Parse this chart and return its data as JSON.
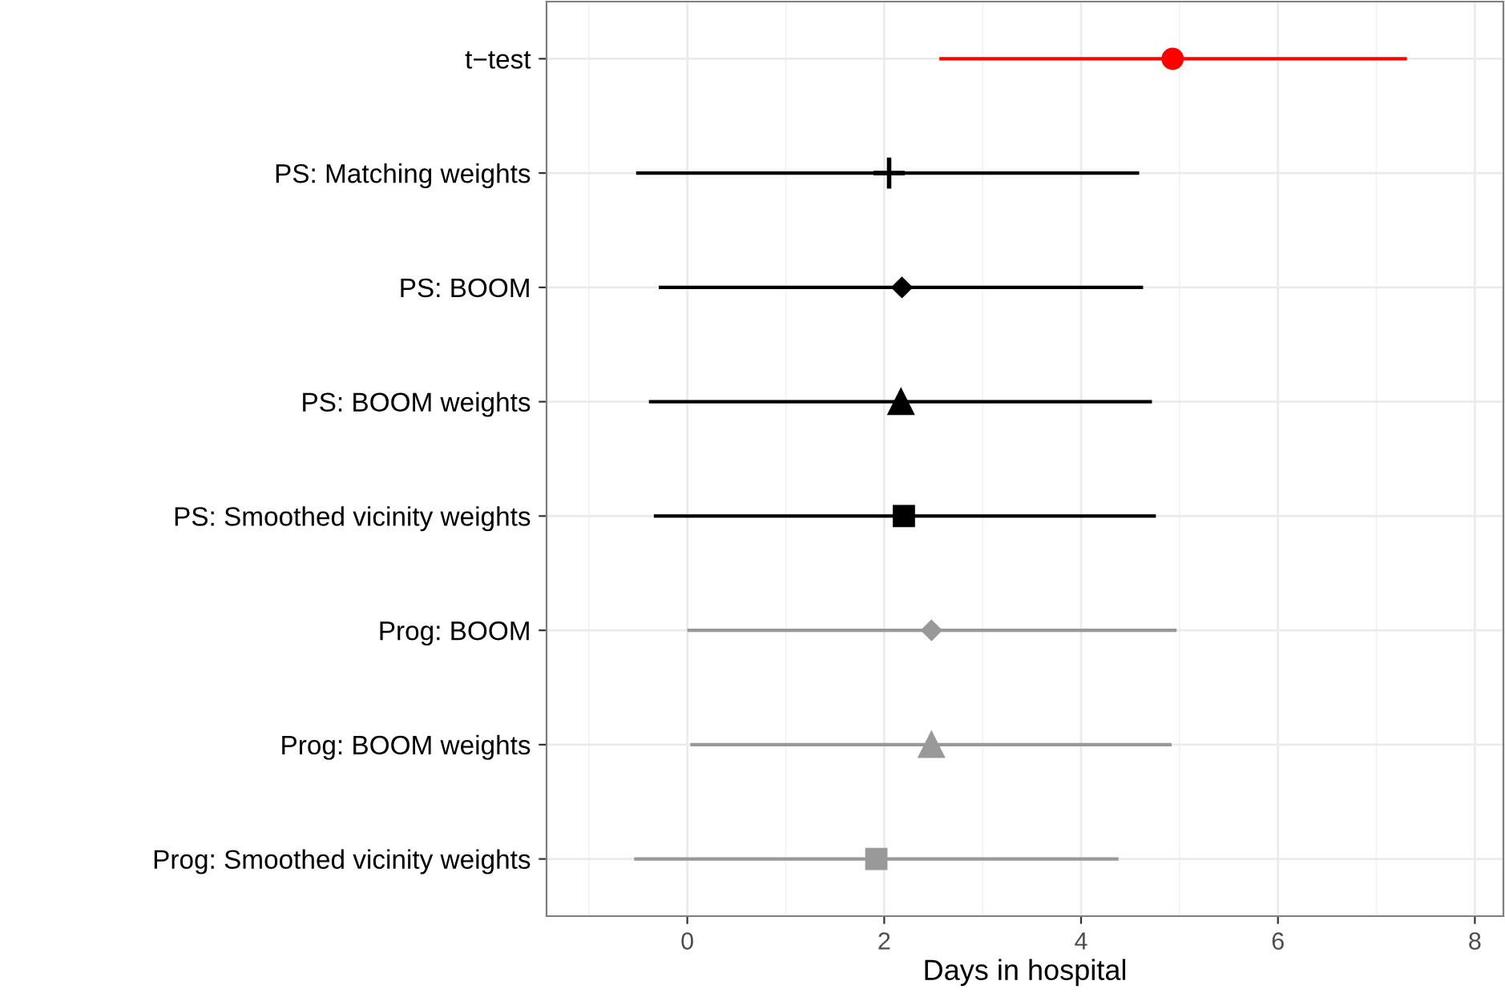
{
  "chart_data": {
    "type": "scatter",
    "orientation": "horizontal",
    "xlabel": "Days in hospital",
    "categories": [
      "t−test",
      "PS: Matching weights",
      "PS: BOOM",
      "PS: BOOM weights",
      "PS: Smoothed vicinity weights",
      "Prog: BOOM",
      "Prog: BOOM weights",
      "Prog: Smoothed vicinity weights"
    ],
    "series": [
      {
        "color": "#ff0000",
        "marker": "circle",
        "values": [
          4.93,
          null,
          null,
          null,
          null,
          null,
          null,
          null
        ],
        "errors": [
          [
            2.56,
            7.31
          ],
          null,
          null,
          null,
          null,
          null,
          null,
          null
        ]
      },
      {
        "color": "#000000",
        "marker": "cross",
        "values": [
          null,
          2.05,
          null,
          null,
          null,
          null,
          null,
          null
        ],
        "errors": [
          null,
          [
            -0.52,
            4.59
          ],
          null,
          null,
          null,
          null,
          null,
          null
        ]
      },
      {
        "color": "#000000",
        "marker": "diamond",
        "values": [
          null,
          null,
          2.18,
          null,
          null,
          null,
          null,
          null
        ],
        "errors": [
          null,
          null,
          [
            -0.29,
            4.63
          ],
          null,
          null,
          null,
          null,
          null
        ]
      },
      {
        "color": "#000000",
        "marker": "triangle",
        "values": [
          null,
          null,
          null,
          2.17,
          null,
          null,
          null,
          null
        ],
        "errors": [
          null,
          null,
          null,
          [
            -0.39,
            4.72
          ],
          null,
          null,
          null,
          null
        ]
      },
      {
        "color": "#000000",
        "marker": "square",
        "values": [
          null,
          null,
          null,
          null,
          2.2,
          null,
          null,
          null
        ],
        "errors": [
          null,
          null,
          null,
          null,
          [
            -0.34,
            4.76
          ],
          null,
          null,
          null
        ]
      },
      {
        "color": "#999999",
        "marker": "diamond",
        "values": [
          null,
          null,
          null,
          null,
          null,
          2.48,
          null,
          null
        ],
        "errors": [
          null,
          null,
          null,
          null,
          null,
          [
            0.0,
            4.97
          ],
          null,
          null
        ]
      },
      {
        "color": "#999999",
        "marker": "triangle",
        "values": [
          null,
          null,
          null,
          null,
          null,
          null,
          2.48,
          null
        ],
        "errors": [
          null,
          null,
          null,
          null,
          null,
          null,
          [
            0.03,
            4.92
          ],
          null
        ]
      },
      {
        "color": "#999999",
        "marker": "square",
        "values": [
          null,
          null,
          null,
          null,
          null,
          null,
          null,
          1.92
        ],
        "errors": [
          null,
          null,
          null,
          null,
          null,
          null,
          null,
          [
            -0.54,
            4.38
          ]
        ]
      }
    ],
    "xlim": [
      -1.43,
      8.29
    ],
    "xticks": [
      0,
      2,
      4,
      6,
      8
    ],
    "grid": true
  }
}
